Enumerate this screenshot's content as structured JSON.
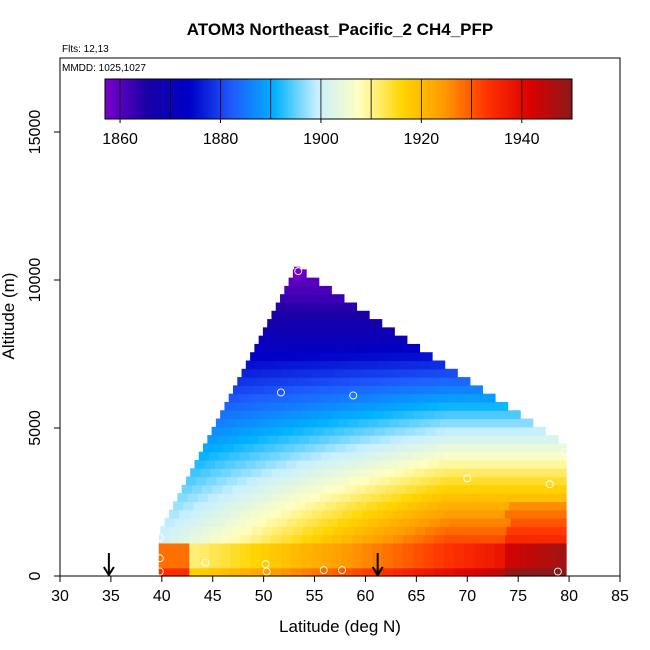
{
  "chart_data": {
    "type": "heatmap",
    "title": "ATOM3 Northeast_Pacific_2 CH4_PFP",
    "annotations": {
      "flights": "Flts: 12,13",
      "dates": "MMDD: 1025,1027"
    },
    "xlabel": "Latitude (deg N)",
    "ylabel": "Altitude (m)",
    "xlim": [
      30,
      85
    ],
    "ylim": [
      0,
      17500
    ],
    "x_ticks": [
      "30",
      "35",
      "40",
      "45",
      "50",
      "55",
      "60",
      "65",
      "70",
      "75",
      "80",
      "85"
    ],
    "y_ticks": [
      "0",
      "5000",
      "10000",
      "15000"
    ],
    "colorbar": {
      "range": [
        1857,
        1950
      ],
      "tick_labels": [
        "1860",
        "1880",
        "1900",
        "1920",
        "1940"
      ],
      "colors": [
        "#7a00cc",
        "#1a00a6",
        "#0000c8",
        "#1e5cff",
        "#00b2ff",
        "#c8f0ff",
        "#ffffc0",
        "#ffd500",
        "#ff9900",
        "#ff3300",
        "#dd0000",
        "#8a1a1a"
      ]
    },
    "field": {
      "lat_range": [
        39.7,
        79.7
      ],
      "surface_top_alt": 4300,
      "apex_lat": 53.2,
      "apex_alt": 10300
    },
    "arrows": [
      {
        "lat": 34.8,
        "alt": 0
      },
      {
        "lat": 61.2,
        "alt": 0
      }
    ],
    "samples": [
      {
        "lat": 39.8,
        "alt": 1300
      },
      {
        "lat": 39.8,
        "alt": 600
      },
      {
        "lat": 39.8,
        "alt": 150
      },
      {
        "lat": 44.3,
        "alt": 450
      },
      {
        "lat": 50.2,
        "alt": 400
      },
      {
        "lat": 50.3,
        "alt": 150
      },
      {
        "lat": 51.7,
        "alt": 6200
      },
      {
        "lat": 53.4,
        "alt": 10300
      },
      {
        "lat": 55.9,
        "alt": 200
      },
      {
        "lat": 57.7,
        "alt": 200
      },
      {
        "lat": 58.8,
        "alt": 6100
      },
      {
        "lat": 70.0,
        "alt": 3300
      },
      {
        "lat": 78.1,
        "alt": 3100
      },
      {
        "lat": 78.9,
        "alt": 150
      },
      {
        "lat": 79.6,
        "alt": 4200
      }
    ]
  }
}
